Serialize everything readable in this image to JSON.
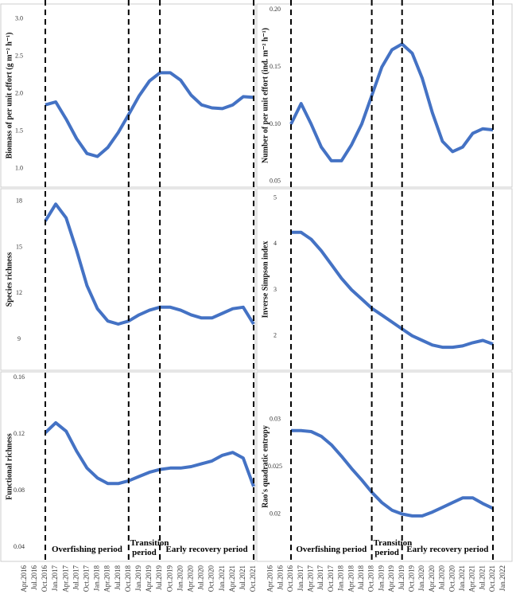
{
  "chart_data": [
    {
      "type": "line",
      "y_label": "Biomass of per unit effort (g m⁻² h⁻¹)",
      "ylim": [
        0.75,
        3.2
      ],
      "yticks": [
        {
          "value": 1,
          "label": "1.0"
        },
        1.5,
        {
          "value": 2,
          "label": "2.0"
        },
        2.5,
        {
          "value": 3,
          "label": "3.0"
        }
      ],
      "color": "#4472c4",
      "values": [
        null,
        null,
        1.85,
        1.89,
        1.66,
        1.4,
        1.2,
        1.16,
        1.28,
        1.48,
        1.72,
        1.97,
        2.17,
        2.28,
        2.28,
        2.18,
        1.98,
        1.85,
        1.81,
        1.8,
        1.85,
        1.96,
        1.95
      ]
    },
    {
      "type": "line",
      "y_label": "Number of per unit effort (ind. m⁻² h⁻¹)",
      "ylim": [
        0.045,
        0.205
      ],
      "yticks": [
        0.05,
        {
          "value": 0.1,
          "label": "0.10"
        },
        0.15,
        {
          "value": 0.2,
          "label": "0.20"
        }
      ],
      "color": "#4472c4",
      "values": [
        null,
        null,
        0.1,
        0.118,
        0.1,
        0.08,
        0.068,
        0.068,
        0.082,
        0.1,
        0.125,
        0.15,
        0.165,
        0.17,
        0.162,
        0.14,
        0.11,
        0.085,
        0.076,
        0.08,
        0.092,
        0.096,
        0.095,
        null
      ]
    },
    {
      "type": "line",
      "y_label": "Species richness",
      "ylim": [
        7,
        18.8
      ],
      "yticks": [
        9,
        12,
        15,
        18
      ],
      "color": "#4472c4",
      "values": [
        null,
        null,
        16.7,
        17.8,
        16.9,
        14.8,
        12.5,
        11.0,
        10.2,
        10.0,
        10.2,
        10.6,
        10.9,
        11.1,
        11.1,
        10.9,
        10.6,
        10.4,
        10.4,
        10.7,
        11.0,
        11.1,
        10.0
      ]
    },
    {
      "type": "line",
      "y_label": "Inverse Simpson index",
      "ylim": [
        1.25,
        5.2
      ],
      "yticks": [
        2,
        3,
        4,
        5
      ],
      "color": "#4472c4",
      "values": [
        null,
        null,
        4.25,
        4.25,
        4.1,
        3.85,
        3.55,
        3.25,
        3.0,
        2.8,
        2.6,
        2.45,
        2.3,
        2.15,
        2.0,
        1.9,
        1.8,
        1.75,
        1.75,
        1.78,
        1.85,
        1.9,
        1.82,
        null
      ]
    },
    {
      "type": "line",
      "y_label": "Functional richness",
      "ylim": [
        0.03,
        0.164
      ],
      "yticks": [
        0.04,
        0.08,
        0.12,
        0.16
      ],
      "color": "#4472c4",
      "values": [
        null,
        null,
        0.121,
        0.128,
        0.122,
        0.108,
        0.096,
        0.089,
        0.085,
        0.085,
        0.087,
        0.09,
        0.093,
        0.095,
        0.096,
        0.096,
        0.097,
        0.099,
        0.101,
        0.105,
        0.107,
        0.103,
        0.083
      ],
      "categories": [
        "Apr.2016",
        "Jul.2016",
        "Oct.2016",
        "Jan.2017",
        "Apr.2017",
        "Jul.2017",
        "Oct.2017",
        "Jan.2018",
        "Apr.2018",
        "Jul.2018",
        "Oct.2018",
        "Jan.2019",
        "Apr.2019",
        "Jul.2019",
        "Oct.2019",
        "Jan.2020",
        "Apr.2020",
        "Jul.2020",
        "Oct.2020",
        "Jan.2021",
        "Apr.2021",
        "Jul.2021",
        "Oct.2021"
      ],
      "vlines": [
        "Oct.2016",
        "Oct.2018",
        "Jul.2019",
        "Oct.2021"
      ],
      "annotations": [
        "Overfishing period",
        "Transition period",
        "Early recovery period"
      ]
    },
    {
      "type": "line",
      "y_label": "Rao's quadratic entropy",
      "ylim": [
        0.015,
        0.035
      ],
      "yticks": [
        0.02,
        0.025,
        0.03
      ],
      "color": "#4472c4",
      "values": [
        null,
        null,
        0.0288,
        0.0288,
        0.0287,
        0.0282,
        0.0273,
        0.0261,
        0.0248,
        0.0236,
        0.0223,
        0.0212,
        0.0204,
        0.02,
        0.0198,
        0.0198,
        0.0202,
        0.0207,
        0.0212,
        0.0217,
        0.0217,
        0.0211,
        0.0206,
        null
      ],
      "categories": [
        "Apr.2016",
        "Jul.2016",
        "Oct.2016",
        "Jan.2017",
        "Apr.2017",
        "Jul.2017",
        "Oct.2017",
        "Jan.2018",
        "Apr.2018",
        "Jul.2018",
        "Oct.2018",
        "Jan.2019",
        "Apr.2019",
        "Jul.2019",
        "Oct.2019",
        "Jan.2020",
        "Apr.2020",
        "Jul.2020",
        "Oct.2020",
        "Jan.2021",
        "Apr.2021",
        "Jul.2021",
        "Oct.2021",
        "Jan.2022"
      ],
      "vlines": [
        "Oct.2016",
        "Oct.2018",
        "Jul.2019",
        "Oct.2021"
      ],
      "annotations": [
        "Overfishing period",
        "Transition period",
        "Early recovery period"
      ]
    }
  ]
}
